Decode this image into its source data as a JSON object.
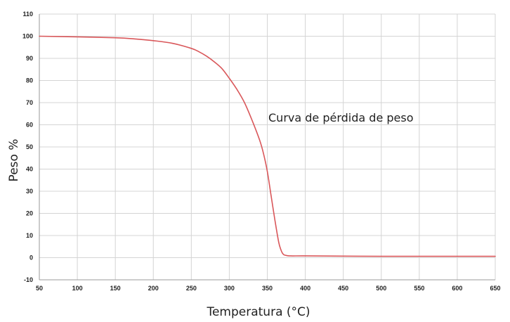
{
  "chart_data": {
    "type": "line",
    "title": "",
    "xlabel": "Temperatura (°C)",
    "ylabel": "Peso %",
    "xlim": [
      50,
      650
    ],
    "ylim": [
      -10,
      110
    ],
    "xticks": [
      50,
      100,
      150,
      200,
      250,
      300,
      350,
      400,
      450,
      500,
      550,
      600,
      650
    ],
    "yticks": [
      -10,
      0,
      10,
      20,
      30,
      40,
      50,
      60,
      70,
      80,
      90,
      100,
      110
    ],
    "grid": true,
    "legend": "none",
    "annotation": "Curva de pérdida de peso",
    "series": [
      {
        "color": "#d9575a",
        "x": [
          50,
          100,
          150,
          175,
          200,
          225,
          250,
          260,
          270,
          280,
          290,
          300,
          310,
          320,
          330,
          340,
          345,
          350,
          355,
          360,
          365,
          368,
          370,
          372,
          375,
          380,
          400,
          450,
          500,
          550,
          600,
          650
        ],
        "y": [
          100,
          99.7,
          99.3,
          98.8,
          98,
          96.8,
          94.5,
          93,
          91,
          88.5,
          85.5,
          81,
          76,
          70,
          62,
          53,
          47,
          39,
          28,
          17,
          7,
          3.5,
          2,
          1.3,
          1,
          0.8,
          0.8,
          0.7,
          0.6,
          0.6,
          0.6,
          0.6
        ]
      }
    ]
  }
}
